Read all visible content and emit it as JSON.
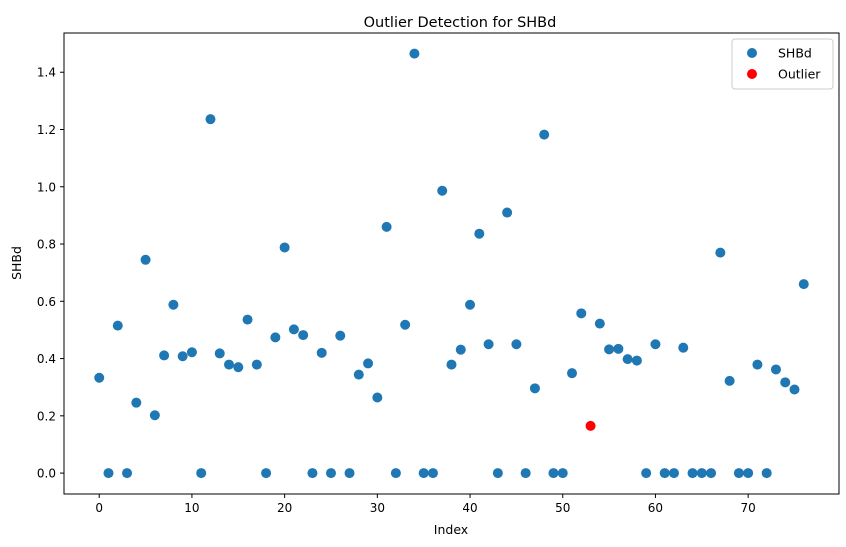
{
  "chart_data": {
    "type": "scatter",
    "title": "Outlier Detection for SHBd",
    "xlabel": "Index",
    "ylabel": "SHBd",
    "xlim": [
      -3.8,
      79.8
    ],
    "ylim": [
      -0.073,
      1.537
    ],
    "xticks": [
      0,
      10,
      20,
      30,
      40,
      50,
      60,
      70
    ],
    "yticks": [
      0.0,
      0.2,
      0.4,
      0.6,
      0.8,
      1.0,
      1.2,
      1.4
    ],
    "ytick_labels": [
      "0.0",
      "0.2",
      "0.4",
      "0.6",
      "0.8",
      "1.0",
      "1.2",
      "1.4"
    ],
    "grid": false,
    "legend_position": "top-right",
    "series": [
      {
        "name": "SHBd",
        "color": "#1f77b4",
        "x": [
          0,
          1,
          2,
          3,
          4,
          5,
          6,
          7,
          8,
          9,
          10,
          11,
          12,
          13,
          14,
          15,
          16,
          17,
          18,
          19,
          20,
          21,
          22,
          23,
          24,
          25,
          26,
          27,
          28,
          29,
          30,
          31,
          32,
          33,
          34,
          35,
          36,
          37,
          38,
          39,
          40,
          41,
          42,
          43,
          44,
          45,
          46,
          47,
          48,
          49,
          50,
          51,
          52,
          54,
          55,
          56,
          57,
          58,
          59,
          60,
          61,
          62,
          63,
          64,
          65,
          66,
          67,
          68,
          69,
          70,
          71,
          72,
          73,
          74,
          75,
          76
        ],
        "y": [
          0.333,
          0.0,
          0.515,
          0.0,
          0.246,
          0.745,
          0.202,
          0.411,
          0.588,
          0.408,
          0.422,
          0.0,
          1.236,
          0.418,
          0.379,
          0.37,
          0.536,
          0.379,
          0.0,
          0.474,
          0.788,
          0.502,
          0.482,
          0.0,
          0.42,
          0.0,
          0.48,
          0.0,
          0.344,
          0.383,
          0.264,
          0.86,
          0.0,
          0.518,
          1.465,
          0.0,
          0.0,
          0.986,
          0.379,
          0.431,
          0.588,
          0.836,
          0.45,
          0.0,
          0.91,
          0.45,
          0.0,
          0.296,
          1.182,
          0.0,
          0.0,
          0.349,
          0.558,
          0.522,
          0.432,
          0.434,
          0.398,
          0.393,
          0.0,
          0.45,
          0.0,
          0.0,
          0.438,
          0.0,
          0.0,
          0.0,
          0.77,
          0.322,
          0.0,
          0.0,
          0.379,
          0.0,
          0.362,
          0.317,
          0.292,
          0.66
        ]
      },
      {
        "name": "Outlier",
        "color": "#ff0000",
        "x": [
          53
        ],
        "y": [
          0.165
        ]
      }
    ]
  }
}
